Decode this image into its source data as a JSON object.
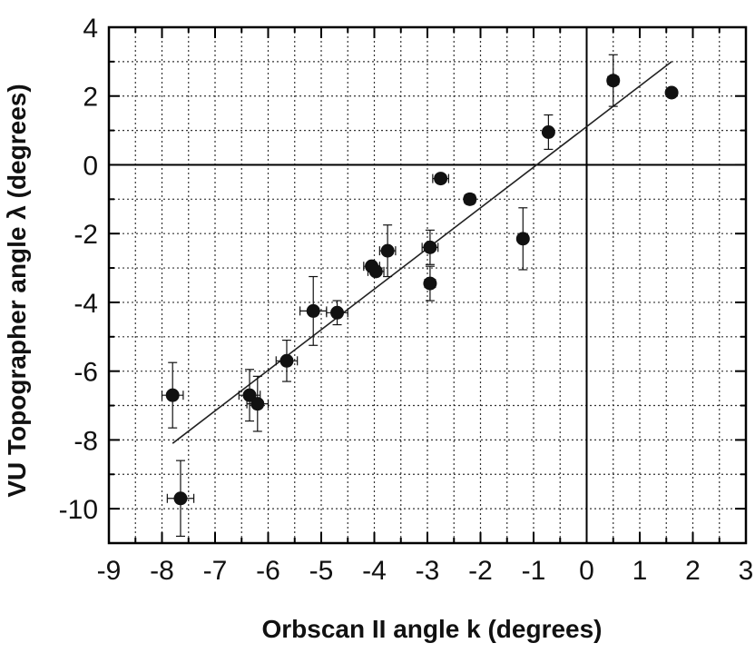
{
  "chart_data": {
    "type": "scatter",
    "xlabel": "Orbscan II angle k (degrees)",
    "ylabel": "VU Topographer angle λ (degrees)",
    "xlim": [
      -9,
      3
    ],
    "ylim": [
      -11,
      4
    ],
    "x_ticks": [
      -9,
      -8,
      -7,
      -6,
      -5,
      -4,
      -3,
      -2,
      -1,
      0,
      1,
      2,
      3
    ],
    "x_tick_labels": [
      "-9",
      "-8",
      "-7",
      "-6",
      "-5",
      "-4",
      "-3",
      "-2",
      "-1",
      "0",
      "1",
      "2",
      "3"
    ],
    "y_ticks": [
      4,
      2,
      0,
      -2,
      -4,
      -6,
      -8,
      -10
    ],
    "y_tick_labels": [
      "4",
      "2",
      "0",
      "-2",
      "-4",
      "-6",
      "-8",
      "-10"
    ],
    "grid": true,
    "points": [
      {
        "x": -7.8,
        "y": -6.7,
        "xerr": 0.2,
        "yerr": 0.95
      },
      {
        "x": -7.65,
        "y": -9.7,
        "xerr": 0.25,
        "yerr": 1.1
      },
      {
        "x": -6.35,
        "y": -6.7,
        "xerr": 0.2,
        "yerr": 0.75
      },
      {
        "x": -6.2,
        "y": -6.95,
        "xerr": 0.2,
        "yerr": 0.8
      },
      {
        "x": -5.65,
        "y": -5.7,
        "xerr": 0.2,
        "yerr": 0.6
      },
      {
        "x": -5.15,
        "y": -4.25,
        "xerr": 0.25,
        "yerr": 1.0
      },
      {
        "x": -4.7,
        "y": -4.3,
        "xerr": 0.2,
        "yerr": 0.35
      },
      {
        "x": -4.05,
        "y": -2.95,
        "xerr": 0.15,
        "yerr": 0.1
      },
      {
        "x": -3.97,
        "y": -3.1,
        "xerr": 0.15,
        "yerr": 0.1
      },
      {
        "x": -3.75,
        "y": -2.5,
        "xerr": 0.15,
        "yerr": 0.75
      },
      {
        "x": -2.95,
        "y": -2.4,
        "xerr": 0.15,
        "yerr": 0.5
      },
      {
        "x": -2.95,
        "y": -3.45,
        "xerr": 0.1,
        "yerr": 0.5
      },
      {
        "x": -2.75,
        "y": -0.4,
        "xerr": 0.15,
        "yerr": 0.05
      },
      {
        "x": -2.2,
        "y": -1.0,
        "xerr": 0.1,
        "yerr": 0.15
      },
      {
        "x": -1.2,
        "y": -2.15,
        "xerr": 0.05,
        "yerr": 0.9
      },
      {
        "x": -0.72,
        "y": 0.95,
        "xerr": 0.05,
        "yerr": 0.5
      },
      {
        "x": 0.5,
        "y": 2.45,
        "xerr": 0.1,
        "yerr": 0.75
      },
      {
        "x": 1.6,
        "y": 2.1,
        "xerr": 0.05,
        "yerr": 0.05
      }
    ],
    "fit_line": {
      "x": [
        -7.8,
        1.6
      ],
      "y": [
        -8.1,
        3.0
      ]
    }
  }
}
